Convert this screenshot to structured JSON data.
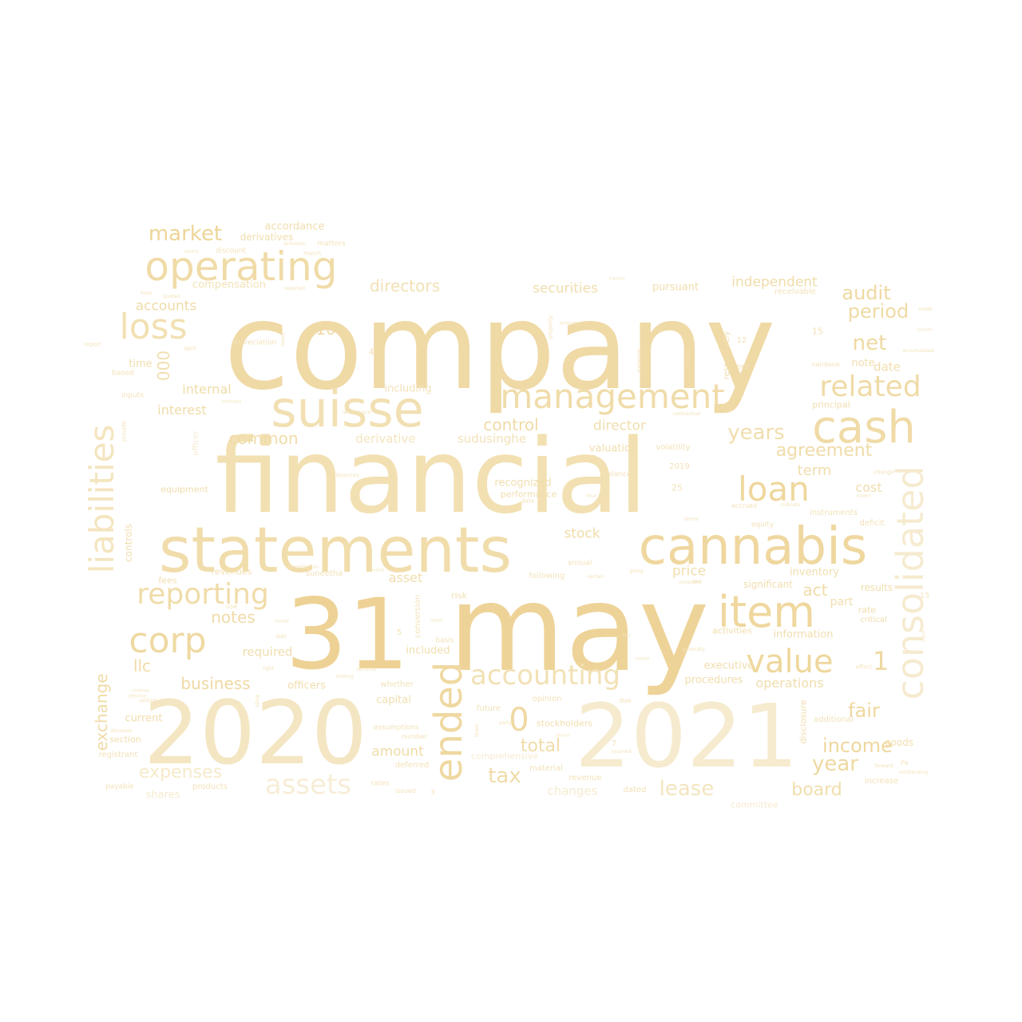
{
  "palette": [
    "#EFD9A0",
    "#F0DBA6",
    "#F2E0B0",
    "#F4E5BD",
    "#F6EACB",
    "#EED294"
  ],
  "words": [
    {
      "id": "company",
      "text": "company"
    },
    {
      "id": "financial",
      "text": "financial"
    },
    {
      "id": "statements",
      "text": "statements"
    },
    {
      "id": "may",
      "text": "may"
    },
    {
      "id": "31",
      "text": "31"
    },
    {
      "id": "2020",
      "text": "2020"
    },
    {
      "id": "2021",
      "text": "2021"
    },
    {
      "id": "suisse",
      "text": "suisse"
    },
    {
      "id": "operating",
      "text": "operating"
    },
    {
      "id": "cannabis",
      "text": "cannabis"
    },
    {
      "id": "management",
      "text": "management"
    },
    {
      "id": "cash",
      "text": "cash"
    },
    {
      "id": "consolidated",
      "text": "consolidated"
    },
    {
      "id": "item",
      "text": "item"
    },
    {
      "id": "liabilities",
      "text": "liabilities"
    },
    {
      "id": "ended",
      "text": "ended"
    },
    {
      "id": "loss",
      "text": "loss"
    },
    {
      "id": "loan",
      "text": "loan"
    },
    {
      "id": "related",
      "text": "related"
    },
    {
      "id": "reporting",
      "text": "reporting"
    },
    {
      "id": "corp",
      "text": "corp"
    },
    {
      "id": "value",
      "text": "value"
    },
    {
      "id": "accounting",
      "text": "accounting"
    },
    {
      "id": "assets",
      "text": "assets"
    },
    {
      "id": "market",
      "text": "market"
    },
    {
      "id": "net",
      "text": "net"
    },
    {
      "id": "audit",
      "text": "audit"
    },
    {
      "id": "period",
      "text": "period"
    },
    {
      "id": "years",
      "text": "years"
    },
    {
      "id": "agreement",
      "text": "agreement"
    },
    {
      "id": "year",
      "text": "year"
    },
    {
      "id": "income",
      "text": "income"
    },
    {
      "id": "fair",
      "text": "fair"
    },
    {
      "id": "lease",
      "text": "lease"
    },
    {
      "id": "board",
      "text": "board"
    },
    {
      "id": "expenses",
      "text": "expenses"
    },
    {
      "id": "exchange",
      "text": "exchange"
    },
    {
      "id": "tax",
      "text": "tax"
    },
    {
      "id": "total",
      "text": "total"
    },
    {
      "id": "zero",
      "text": "0"
    },
    {
      "id": "one",
      "text": "1"
    },
    {
      "id": "ten",
      "text": "10"
    },
    {
      "id": "000",
      "text": "000"
    },
    {
      "id": "directors",
      "text": "directors"
    },
    {
      "id": "independent",
      "text": "independent"
    },
    {
      "id": "securities",
      "text": "securities"
    },
    {
      "id": "common",
      "text": "common"
    },
    {
      "id": "control",
      "text": "control"
    },
    {
      "id": "director",
      "text": "director"
    },
    {
      "id": "notes",
      "text": "notes"
    },
    {
      "id": "business",
      "text": "business"
    },
    {
      "id": "llc",
      "text": "llc"
    },
    {
      "id": "act",
      "text": "act"
    },
    {
      "id": "term",
      "text": "term"
    },
    {
      "id": "cost",
      "text": "cost"
    },
    {
      "id": "stock",
      "text": "stock"
    },
    {
      "id": "price",
      "text": "price"
    },
    {
      "id": "amount",
      "text": "amount"
    },
    {
      "id": "operations",
      "text": "operations"
    },
    {
      "id": "accounts",
      "text": "accounts"
    },
    {
      "id": "interest",
      "text": "interest"
    },
    {
      "id": "internal",
      "text": "internal"
    },
    {
      "id": "date",
      "text": "date"
    },
    {
      "id": "note",
      "text": "note"
    },
    {
      "id": "derivative",
      "text": "derivative"
    },
    {
      "id": "sudusinghe",
      "text": "sudusinghe"
    },
    {
      "id": "accordance",
      "text": "accordance"
    },
    {
      "id": "derivatives",
      "text": "derivatives"
    },
    {
      "id": "compensation",
      "text": "compensation"
    },
    {
      "id": "pursuant",
      "text": "pursuant"
    },
    {
      "id": "time",
      "text": "time"
    },
    {
      "id": "including",
      "text": "including"
    },
    {
      "id": "recognized",
      "text": "recognized"
    },
    {
      "id": "performance",
      "text": "performance"
    },
    {
      "id": "valuation",
      "text": "valuation"
    },
    {
      "id": "us",
      "text": "us"
    },
    {
      "id": "volatility",
      "text": "volatility"
    },
    {
      "id": "equipment",
      "text": "equipment"
    },
    {
      "id": "controls",
      "text": "controls"
    },
    {
      "id": "fees",
      "text": "fees"
    },
    {
      "id": "revenues",
      "text": "revenues"
    },
    {
      "id": "suneetha",
      "text": "suneetha"
    },
    {
      "id": "asset",
      "text": "asset"
    },
    {
      "id": "following",
      "text": "following"
    },
    {
      "id": "inventory",
      "text": "inventory"
    },
    {
      "id": "significant",
      "text": "significant"
    },
    {
      "id": "part",
      "text": "part"
    },
    {
      "id": "results",
      "text": "results"
    },
    {
      "id": "rate",
      "text": "rate"
    },
    {
      "id": "critical",
      "text": "critical"
    },
    {
      "id": "information",
      "text": "information"
    },
    {
      "id": "activities",
      "text": "activities"
    },
    {
      "id": "executive",
      "text": "executive"
    },
    {
      "id": "procedures",
      "text": "procedures"
    },
    {
      "id": "required",
      "text": "required"
    },
    {
      "id": "included",
      "text": "included"
    },
    {
      "id": "officers",
      "text": "officers"
    },
    {
      "id": "whether",
      "text": "whether"
    },
    {
      "id": "capital",
      "text": "capital"
    },
    {
      "id": "current",
      "text": "current"
    },
    {
      "id": "section",
      "text": "section"
    },
    {
      "id": "registrant",
      "text": "registrant"
    },
    {
      "id": "payable",
      "text": "payable"
    },
    {
      "id": "products",
      "text": "products"
    },
    {
      "id": "shares",
      "text": "shares"
    },
    {
      "id": "changes",
      "text": "changes"
    },
    {
      "id": "committee",
      "text": "committee"
    },
    {
      "id": "stockholders",
      "text": "stockholders"
    },
    {
      "id": "comprehensive",
      "text": "comprehensive"
    },
    {
      "id": "future",
      "text": "future"
    },
    {
      "id": "opinion",
      "text": "opinion"
    },
    {
      "id": "material",
      "text": "material"
    },
    {
      "id": "revenue",
      "text": "revenue"
    },
    {
      "id": "annual",
      "text": "annual"
    },
    {
      "id": "additional",
      "text": "additional"
    },
    {
      "id": "goods",
      "text": "goods"
    },
    {
      "id": "increase",
      "text": "increase"
    },
    {
      "id": "disclosure",
      "text": "disclosure"
    },
    {
      "id": "deferred",
      "text": "deferred"
    },
    {
      "id": "rates",
      "text": "rates"
    },
    {
      "id": "issued",
      "text": "issued"
    },
    {
      "id": "dated",
      "text": "dated"
    },
    {
      "id": "assumptions",
      "text": "assumptions"
    },
    {
      "id": "number",
      "text": "number"
    },
    {
      "id": "risk",
      "text": "risk"
    },
    {
      "id": "basis",
      "text": "basis"
    },
    {
      "id": "conversion",
      "text": "conversion"
    },
    {
      "id": "instruments",
      "text": "instruments"
    },
    {
      "id": "equity",
      "text": "equity"
    },
    {
      "id": "deficit",
      "text": "deficit"
    },
    {
      "id": "principal",
      "text": "principal"
    },
    {
      "id": "per",
      "text": "per"
    },
    {
      "id": "nandana",
      "text": "nandana"
    },
    {
      "id": "respectively",
      "text": "respectively"
    },
    {
      "id": "receivable",
      "text": "receivable"
    },
    {
      "id": "matters",
      "text": "matters"
    },
    {
      "id": "discount",
      "text": "discount"
    },
    {
      "id": "march",
      "text": "march"
    },
    {
      "id": "depreciation",
      "text": "depreciation"
    },
    {
      "id": "based",
      "text": "based"
    },
    {
      "id": "inputs",
      "text": "inputs"
    },
    {
      "id": "allowance",
      "text": "allowance"
    },
    {
      "id": "officer",
      "text": "officer"
    },
    {
      "id": "balance",
      "text": "balance"
    },
    {
      "id": "advances",
      "text": "advances"
    },
    {
      "id": "accrued",
      "text": "accrued"
    },
    {
      "id": "2019",
      "text": "2019"
    },
    {
      "id": "25",
      "text": "25"
    },
    {
      "id": "15",
      "text": "15"
    },
    {
      "id": "12",
      "text": "12"
    },
    {
      "id": "4",
      "text": "4"
    },
    {
      "id": "5",
      "text": "5"
    },
    {
      "id": "7",
      "text": "7"
    },
    {
      "id": "2",
      "text": "2"
    },
    {
      "id": "3",
      "text": "3"
    },
    {
      "id": "13",
      "text": "13"
    },
    {
      "id": "reported",
      "text": "reported"
    },
    {
      "id": "april",
      "text": "april"
    },
    {
      "id": "report",
      "text": "report"
    },
    {
      "id": "united",
      "text": "united"
    },
    {
      "id": "effective",
      "text": "effective"
    },
    {
      "id": "continue",
      "text": "continue"
    },
    {
      "id": "decrease",
      "text": "decrease"
    },
    {
      "id": "use",
      "text": "use"
    },
    {
      "id": "amortization",
      "text": "amortization"
    },
    {
      "id": "right",
      "text": "right"
    },
    {
      "id": "debt",
      "text": "debt"
    },
    {
      "id": "services",
      "text": "services"
    },
    {
      "id": "looking",
      "text": "looking"
    },
    {
      "id": "silva",
      "text": "silva"
    },
    {
      "id": "going",
      "text": "going"
    },
    {
      "id": "certain",
      "text": "certain"
    },
    {
      "id": "president",
      "text": "president"
    },
    {
      "id": "generally",
      "text": "generally"
    },
    {
      "id": "due",
      "text": "due"
    },
    {
      "id": "share",
      "text": "share"
    },
    {
      "id": "party",
      "text": "party"
    },
    {
      "id": "incurred",
      "text": "incurred"
    },
    {
      "id": "forward",
      "text": "forward"
    },
    {
      "id": "outstanding",
      "text": "outstanding"
    },
    {
      "id": "subject",
      "text": "subject"
    },
    {
      "id": "indicate",
      "text": "indicate"
    },
    {
      "id": "terms",
      "text": "terms"
    },
    {
      "id": "asc",
      "text": "asc"
    },
    {
      "id": "change",
      "text": "change"
    },
    {
      "id": "states",
      "text": "states"
    },
    {
      "id": "expense",
      "text": "expense"
    },
    {
      "id": "property",
      "text": "property"
    },
    {
      "id": "contractual",
      "text": "contractual"
    },
    {
      "id": "accumulated",
      "text": "accumulated"
    },
    {
      "id": "provision",
      "text": "provision"
    },
    {
      "id": "reports",
      "text": "reports"
    },
    {
      "id": "transfer",
      "text": "transfer"
    },
    {
      "id": "fiscal",
      "text": "fiscal"
    },
    {
      "id": "data",
      "text": "data"
    },
    {
      "id": "provide",
      "text": "provide"
    },
    {
      "id": "embedded",
      "text": "embedded"
    },
    {
      "id": "made",
      "text": "made"
    },
    {
      "id": "concern",
      "text": "concern"
    },
    {
      "id": "quoted",
      "text": "quoted"
    },
    {
      "id": "fund",
      "text": "fund"
    },
    {
      "id": "taxes",
      "text": "taxes"
    },
    {
      "id": "estimates",
      "text": "estimates"
    },
    {
      "id": "include",
      "text": "include"
    },
    {
      "id": "losses",
      "text": "losses"
    },
    {
      "id": "factors",
      "text": "factors"
    },
    {
      "id": "smaller",
      "text": "smaller"
    },
    {
      "id": "effect",
      "text": "effect"
    },
    {
      "id": "check",
      "text": "check"
    },
    {
      "id": "events",
      "text": "events"
    },
    {
      "id": "filer",
      "text": "filer"
    }
  ]
}
